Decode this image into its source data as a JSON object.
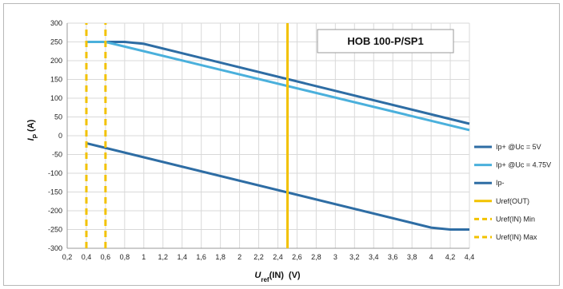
{
  "chart_data": {
    "type": "line",
    "annotation": "HOB 100-P/SP1",
    "xlabel": {
      "main": "U",
      "sub": "ref",
      "rest": "(IN)",
      "unit": "(V)"
    },
    "ylabel": {
      "main": "I",
      "sub": "P",
      "unit": "(A)"
    },
    "xlim": [
      0.2,
      4.4
    ],
    "ylim": [
      -300,
      300
    ],
    "xticks": [
      "0,2",
      "0,4",
      "0,6",
      "0,8",
      "1",
      "1,2",
      "1,4",
      "1,6",
      "1,8",
      "2",
      "2,2",
      "2,4",
      "2,6",
      "2,8",
      "3",
      "3,2",
      "3,4",
      "3,6",
      "3,8",
      "4",
      "4,2",
      "4,4"
    ],
    "xtick_values": [
      0.2,
      0.4,
      0.6,
      0.8,
      1.0,
      1.2,
      1.4,
      1.6,
      1.8,
      2.0,
      2.2,
      2.4,
      2.6,
      2.8,
      3.0,
      3.2,
      3.4,
      3.6,
      3.8,
      4.0,
      4.2,
      4.4
    ],
    "yticks": [
      "300",
      "250",
      "200",
      "150",
      "100",
      "50",
      "0",
      "-50",
      "-100",
      "-150",
      "-200",
      "-250",
      "-300"
    ],
    "ytick_values": [
      300,
      250,
      200,
      150,
      100,
      50,
      0,
      -50,
      -100,
      -150,
      -200,
      -250,
      -300
    ],
    "grid": true,
    "legend_position": "right",
    "series": [
      {
        "name": "Ip+ @Uc = 5V",
        "color": "#2e6da4",
        "style": "solid",
        "x": [
          0.4,
          0.8,
          1.0,
          4.4
        ],
        "y": [
          250,
          250,
          245,
          32
        ]
      },
      {
        "name": "Ip+ @Uc = 4.75V",
        "color": "#4ab0dc",
        "style": "solid",
        "x": [
          0.4,
          0.6,
          4.4
        ],
        "y": [
          250,
          250,
          15
        ]
      },
      {
        "name": "Ip-",
        "color": "#2e6da4",
        "style": "solid",
        "x": [
          0.4,
          4.0,
          4.2,
          4.4
        ],
        "y": [
          -20,
          -245,
          -250,
          -250
        ]
      },
      {
        "name": "Uref(OUT)",
        "color": "#f2c200",
        "style": "solid",
        "x": [
          2.5,
          2.5
        ],
        "y": [
          -300,
          300
        ]
      },
      {
        "name": "Uref(IN) Min",
        "color": "#f2c200",
        "style": "dashed",
        "x": [
          0.4,
          0.4
        ],
        "y": [
          -300,
          300
        ]
      },
      {
        "name": "Uref(IN) Max",
        "color": "#f2c200",
        "style": "dashed",
        "x": [
          0.6,
          0.6
        ],
        "y": [
          -300,
          300
        ]
      }
    ]
  }
}
